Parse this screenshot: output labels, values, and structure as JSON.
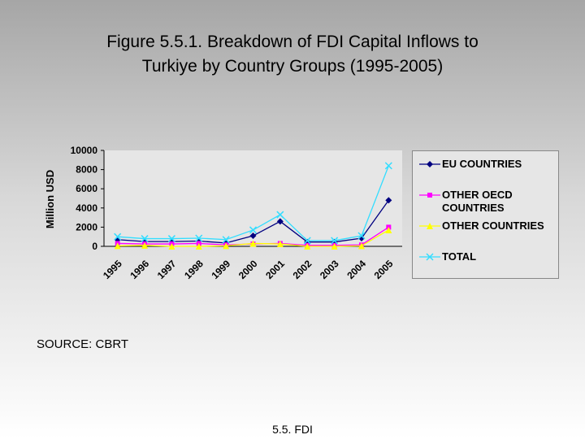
{
  "title": [
    "Figure 5.5.1. Breakdown of FDI Capital Inflows to",
    "Turkiye by Country Groups (1995-2005)"
  ],
  "source": "SOURCE: CBRT",
  "footer": "5.5. FDI",
  "chart_data": {
    "type": "line",
    "y_label": "Million USD",
    "categories": [
      "1995",
      "1996",
      "1997",
      "1998",
      "1999",
      "2000",
      "2001",
      "2002",
      "2003",
      "2004",
      "2005"
    ],
    "series": [
      {
        "name": "EU COUNTRIES",
        "color": "#000080",
        "marker": "diamond",
        "values": [
          700,
          500,
          500,
          550,
          350,
          1100,
          2600,
          450,
          450,
          850,
          4800
        ]
      },
      {
        "name": "OTHER OECD COUNTRIES",
        "color": "#ff00ff",
        "marker": "square",
        "values": [
          300,
          250,
          250,
          300,
          150,
          250,
          300,
          100,
          100,
          150,
          2000
        ]
      },
      {
        "name": "OTHER COUNTRIES",
        "color": "#ffff00",
        "marker": "triangle",
        "values": [
          50,
          100,
          0,
          0,
          50,
          300,
          250,
          0,
          0,
          50,
          1700
        ]
      },
      {
        "name": "TOTAL",
        "color": "#33ddff",
        "marker": "x",
        "values": [
          1000,
          800,
          800,
          850,
          700,
          1700,
          3300,
          600,
          600,
          1100,
          8400
        ]
      }
    ],
    "ylim": [
      0,
      10000
    ],
    "yticks": [
      0,
      2000,
      4000,
      6000,
      8000,
      10000
    ],
    "grid": false,
    "legend": "right"
  }
}
